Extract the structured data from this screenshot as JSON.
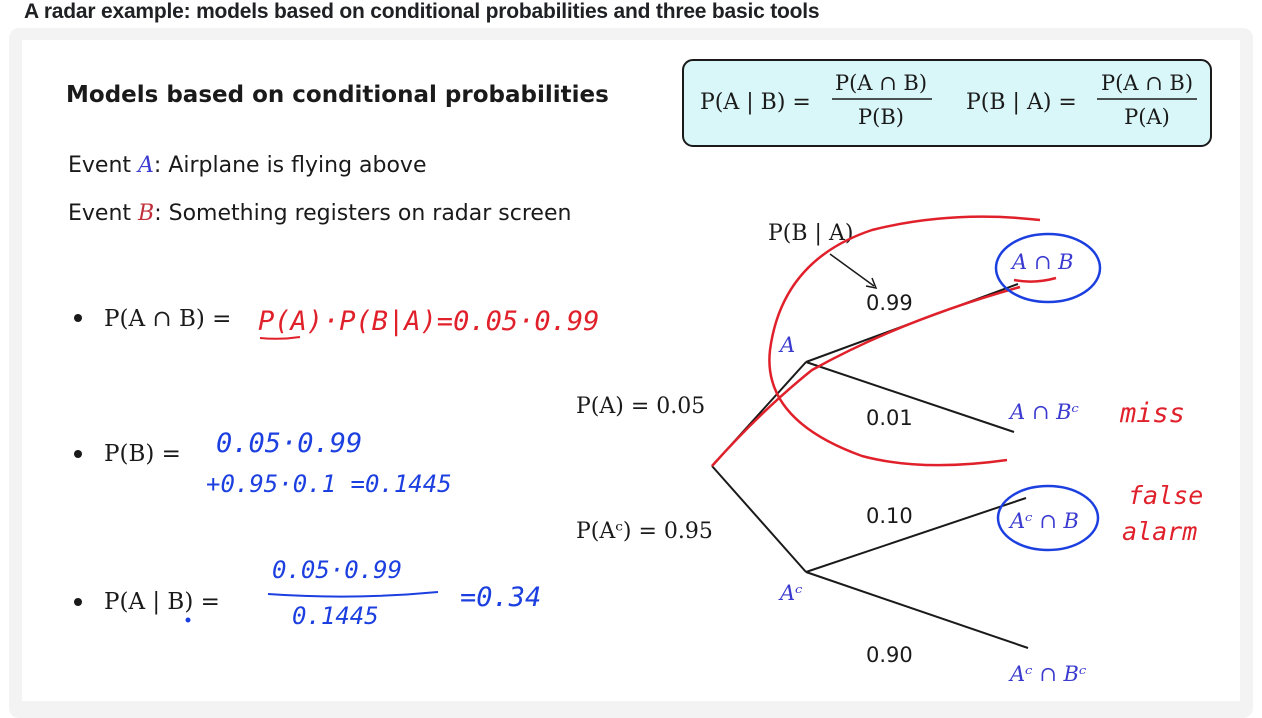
{
  "page": {
    "heading": "A radar example: models based on conditional probabilities and three basic tools"
  },
  "slide": {
    "section_title": "Models based on conditional probabilities",
    "formula_box": {
      "bg": "#d9f6f8",
      "f1_lhs": "P(A | B) =",
      "f1_num": "P(A ∩ B)",
      "f1_den": "P(B)",
      "f2_lhs": "P(B | A) =",
      "f2_num": "P(A ∩ B)",
      "f2_den": "P(A)"
    },
    "events": {
      "a_prefix": "Event",
      "a_var": "A",
      "a_text": ": Airplane is flying above",
      "b_prefix": "Event",
      "b_var": "B",
      "b_text": ": Something registers on radar screen"
    },
    "bullets": {
      "b1_printed": "P(A ∩ B) =",
      "b1_handwritten": "P(A)·P(B|A)=0.05·0.99",
      "b2_printed": "P(B) =",
      "b2_hand_line1": "0.05·0.99",
      "b2_hand_line2": "+0.95·0.1 =0.1445",
      "b3_printed": "P(A | B) =",
      "b3_hand_num": "0.05·0.99",
      "b3_hand_den": "0.1445",
      "b3_hand_result": "=0.34"
    },
    "tree": {
      "label_pba": "P(B | A)",
      "p_a": "P(A) = 0.05",
      "p_ac": "P(Aᶜ) = 0.95",
      "node_a": "A",
      "node_ac": "Aᶜ",
      "edge_099": "0.99",
      "edge_001": "0.01",
      "edge_010": "0.10",
      "edge_090": "0.90",
      "leaf_ab": "A ∩ B",
      "leaf_abc": "A ∩ Bᶜ",
      "leaf_acb": "Aᶜ ∩ B",
      "leaf_acbc": "Aᶜ ∩ Bᶜ",
      "annot_miss": "miss",
      "annot_false": "false",
      "annot_alarm": "alarm"
    },
    "colors": {
      "var_blue": "#3a3ad0",
      "var_red": "#c0303b",
      "ink_red": "#e0202a",
      "ink_blue": "#1c3fe0",
      "text": "#1a1a1a"
    }
  }
}
